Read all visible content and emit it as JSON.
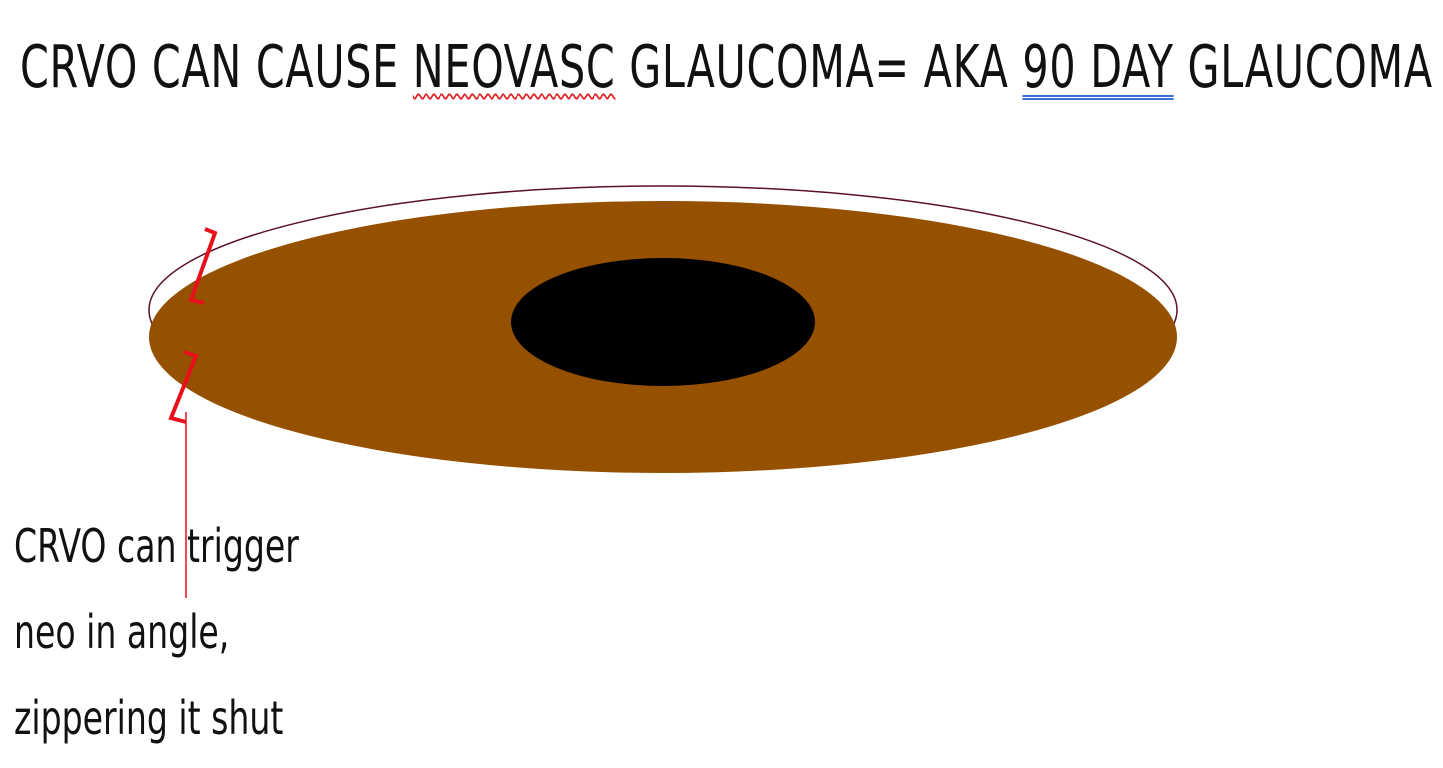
{
  "title": {
    "part1": "CRVO CAN CAUSE ",
    "part2": "NEOVASC",
    "part3": " GLAUCOMA= AKA ",
    "part4": "90 DAY",
    "part5": " GLAUCOMA"
  },
  "caption": {
    "line1": "CRVO can trigger",
    "line2": "neo in angle,",
    "line3": "zippering it shut"
  },
  "colors": {
    "iris": "#955100",
    "pupil": "#000000",
    "zipper": "#e8101a",
    "cornea_outline": "#5a1030",
    "spellcheck_underline": "#e02020",
    "grammar_underline": "#3f6fd8"
  }
}
